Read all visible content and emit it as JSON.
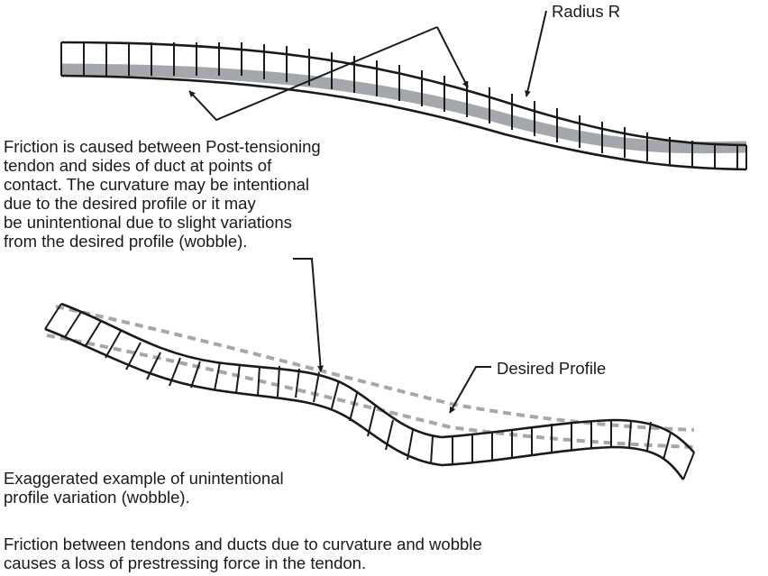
{
  "labels": {
    "radius": "Radius R",
    "desired_profile": "Desired Profile"
  },
  "paragraphs": {
    "friction_lines": [
      "Friction is caused between Post-tensioning",
      "tendon and sides of duct at points of",
      "contact. The curvature may be intentional",
      "due to the desired profile or it may",
      "be unintentional due to slight variations",
      "from the desired profile (wobble)."
    ],
    "wobble_lines": [
      "Exaggerated example of unintentional",
      "profile variation (wobble)."
    ],
    "summary_lines": [
      "Friction between tendons and ducts due to curvature and wobble",
      "causes a loss of prestressing force in the tendon."
    ]
  },
  "colors": {
    "line": "#1a1a1a",
    "tendon": "#a4a8ad",
    "dashed": "#a4a8ad",
    "background": "#ffffff"
  }
}
